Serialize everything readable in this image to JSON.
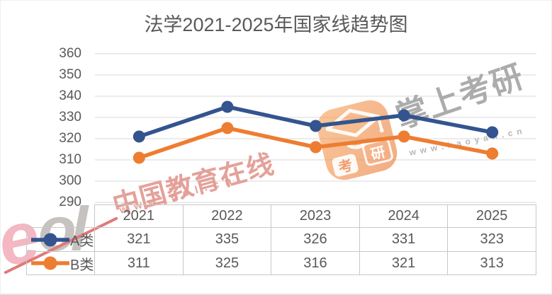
{
  "chart_data": {
    "type": "line",
    "title": "法学2021-2025年国家线趋势图",
    "categories": [
      "2021",
      "2022",
      "2023",
      "2024",
      "2025"
    ],
    "series": [
      {
        "name": "A类",
        "color": "#33548E",
        "values": [
          321,
          335,
          326,
          331,
          323
        ]
      },
      {
        "name": "B类",
        "color": "#ED7D31",
        "values": [
          311,
          325,
          316,
          321,
          313
        ]
      }
    ],
    "ylim": [
      290,
      360
    ],
    "yticks": [
      290,
      300,
      310,
      320,
      330,
      340,
      350,
      360
    ],
    "grid": true,
    "legend_position": "data-table-left",
    "has_data_table": true,
    "marker": "circle"
  },
  "watermarks": {
    "eol": {
      "text": "中国教育在线",
      "url": "www.eol.cn",
      "color": "#E29A92"
    },
    "kaoyan": {
      "text": "掌上考研",
      "url": "www.kaoyan.cn",
      "color": "#A8A8A8",
      "badge_char_left": "考",
      "badge_char_right": "研",
      "badge_color": "#ED7D31"
    },
    "eol_logo": {
      "letter_e": "e",
      "letters_ol": "ol"
    }
  },
  "colors": {
    "title_text": "#595959",
    "axis_text": "#595959",
    "table_text": "#595959",
    "grid_line": "#D9D9D9",
    "table_border": "#C8C8C8",
    "series_a": "#33548E",
    "series_b": "#ED7D31"
  }
}
